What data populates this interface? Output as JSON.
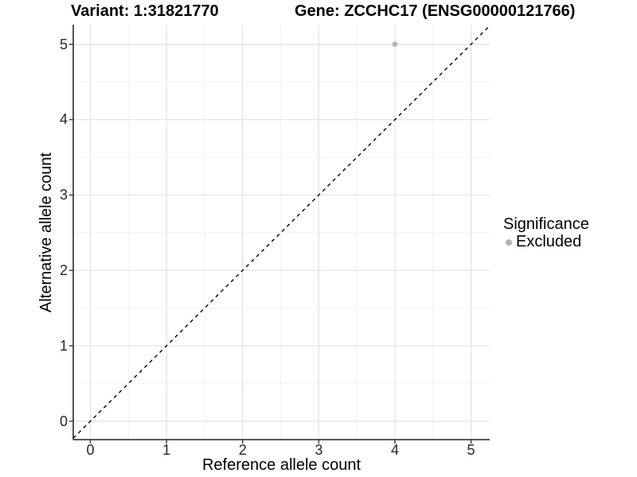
{
  "chart_data": {
    "type": "scatter",
    "title_left": "Variant: 1:31821770",
    "title_right": "Gene: ZCCHC17 (ENSG00000121766)",
    "xlabel": "Reference allele count",
    "ylabel": "Alternative allele count",
    "x_ticks": [
      0,
      1,
      2,
      3,
      4,
      5
    ],
    "y_ticks": [
      0,
      1,
      2,
      3,
      4,
      5
    ],
    "xlim": [
      -0.225,
      5.245
    ],
    "ylim": [
      -0.245,
      5.26
    ],
    "grid": "major+minor",
    "series": [
      {
        "name": "Excluded",
        "color": "#b5b5b5",
        "points": [
          {
            "x": 4,
            "y": 5
          }
        ]
      }
    ],
    "abline": {
      "slope": 1,
      "intercept": 0,
      "style": "dashed",
      "color": "#000000"
    },
    "legend": {
      "title": "Significance",
      "position": "right",
      "entries": [
        {
          "label": "Excluded",
          "color": "#b5b5b5"
        }
      ]
    },
    "colors": {
      "grid_major": "#e3e3e3",
      "grid_minor": "#f0f0f0",
      "axis_line": "#404040",
      "tick_mark": "#404040",
      "tick_label": "#262626",
      "point": "#b5b5b5"
    }
  }
}
